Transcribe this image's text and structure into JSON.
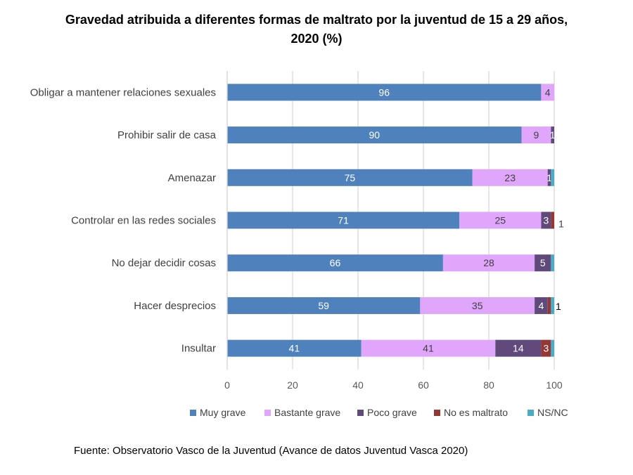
{
  "chart_data": {
    "type": "bar",
    "orientation": "horizontal",
    "stacked": true,
    "title": "Gravedad atribuida a diferentes  formas de maltrato por la juventud de 15 a 29 años, 2020 (%)",
    "categories": [
      "Obligar a mantener relaciones sexuales",
      "Prohibir salir de casa",
      "Amenazar",
      "Controlar en las redes sociales",
      "No dejar decidir cosas",
      "Hacer desprecios",
      "Insultar"
    ],
    "series": [
      {
        "name": "Muy grave",
        "color": "#4F81BD",
        "values": [
          96,
          90,
          75,
          71,
          66,
          59,
          41
        ],
        "labels": [
          "96",
          "90",
          "75",
          "71",
          "66",
          "59",
          "41"
        ]
      },
      {
        "name": "Bastante grave",
        "color": "#DFA6FB",
        "values": [
          4,
          9,
          23,
          25,
          28,
          35,
          41
        ],
        "labels": [
          "4",
          "9",
          "23",
          "25",
          "28",
          "35",
          "41"
        ]
      },
      {
        "name": "Poco grave",
        "color": "#604A7B",
        "values": [
          0,
          1,
          1,
          3,
          5,
          4,
          14
        ],
        "labels": [
          "",
          "1",
          "1",
          "3",
          "5",
          "4",
          "14"
        ]
      },
      {
        "name": "No es maltrato",
        "color": "#953735",
        "values": [
          0,
          0,
          0,
          1,
          0,
          1,
          3
        ],
        "labels": [
          "",
          "",
          "",
          "1",
          "",
          "",
          "3"
        ]
      },
      {
        "name": "NS/NC",
        "color": "#4BACC6",
        "values": [
          0,
          0,
          1,
          0,
          1,
          1,
          1
        ],
        "labels": [
          "",
          "",
          "",
          "",
          "",
          "1",
          ""
        ]
      }
    ],
    "xlim": [
      0,
      100
    ],
    "xticks": [
      "0",
      "20",
      "40",
      "60",
      "80",
      "100"
    ],
    "grid": "vertical",
    "legend": "bottom"
  },
  "source": "Fuente: Observatorio Vasco de la Juventud (Avance de datos Juventud Vasca 2020)"
}
